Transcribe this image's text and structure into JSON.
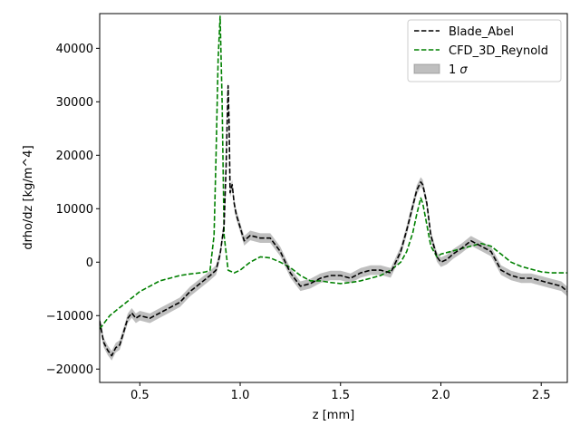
{
  "chart_data": {
    "type": "line",
    "title": "",
    "xlabel": "z [mm]",
    "ylabel": "drho/dz [kg/m^4]",
    "xlim": [
      0.3,
      2.63
    ],
    "ylim": [
      -22500,
      46500
    ],
    "xticks": [
      0.5,
      1.0,
      1.5,
      2.0,
      2.5
    ],
    "xtick_labels": [
      "0.5",
      "1.0",
      "1.5",
      "2.0",
      "2.5"
    ],
    "yticks": [
      -20000,
      -10000,
      0,
      10000,
      20000,
      30000,
      40000
    ],
    "ytick_labels": [
      "−20000",
      "−10000",
      "0",
      "10000",
      "20000",
      "30000",
      "40000"
    ],
    "grid": false,
    "legend_position": "top-right",
    "legend": {
      "blade": "Blade_Abel",
      "cfd": "CFD_3D_Reynold",
      "band_prefix": "1 ",
      "band_symbol": "σ"
    },
    "series": [
      {
        "name": "Blade_Abel",
        "color": "#000000",
        "style": "dashed",
        "x": [
          0.3,
          0.32,
          0.34,
          0.36,
          0.38,
          0.4,
          0.42,
          0.44,
          0.46,
          0.48,
          0.5,
          0.55,
          0.6,
          0.65,
          0.7,
          0.75,
          0.8,
          0.85,
          0.88,
          0.9,
          0.92,
          0.93,
          0.94,
          0.945,
          0.95,
          0.96,
          0.97,
          0.98,
          1.0,
          1.02,
          1.05,
          1.1,
          1.15,
          1.2,
          1.25,
          1.3,
          1.35,
          1.4,
          1.45,
          1.5,
          1.55,
          1.6,
          1.65,
          1.7,
          1.75,
          1.8,
          1.83,
          1.86,
          1.88,
          1.9,
          1.91,
          1.93,
          1.95,
          1.98,
          2.0,
          2.03,
          2.06,
          2.1,
          2.15,
          2.2,
          2.25,
          2.3,
          2.35,
          2.4,
          2.45,
          2.5,
          2.55,
          2.6,
          2.63
        ],
        "y": [
          -11000,
          -15000,
          -16500,
          -17500,
          -16000,
          -15500,
          -13000,
          -10500,
          -9500,
          -10500,
          -10000,
          -10500,
          -9500,
          -8500,
          -7500,
          -5500,
          -4000,
          -2500,
          -1500,
          1500,
          7000,
          18000,
          33000,
          26000,
          13000,
          14500,
          11000,
          9000,
          6500,
          4000,
          5000,
          4500,
          4500,
          2000,
          -2000,
          -4500,
          -4000,
          -3000,
          -2500,
          -2500,
          -3000,
          -2000,
          -1500,
          -1500,
          -2000,
          2000,
          6000,
          10500,
          13500,
          15000,
          14500,
          11000,
          5000,
          1000,
          0,
          500,
          1500,
          2500,
          4000,
          3000,
          2000,
          -1500,
          -2500,
          -3000,
          -3000,
          -3500,
          -4000,
          -4500,
          -5500
        ]
      },
      {
        "name": "CFD_3D_Reynold",
        "color": "#008000",
        "style": "dashed",
        "x": [
          0.3,
          0.35,
          0.4,
          0.45,
          0.5,
          0.55,
          0.6,
          0.65,
          0.7,
          0.75,
          0.8,
          0.83,
          0.85,
          0.87,
          0.88,
          0.89,
          0.9,
          0.91,
          0.92,
          0.94,
          0.97,
          1.0,
          1.05,
          1.1,
          1.15,
          1.2,
          1.25,
          1.3,
          1.35,
          1.4,
          1.45,
          1.5,
          1.55,
          1.6,
          1.65,
          1.7,
          1.75,
          1.8,
          1.83,
          1.86,
          1.88,
          1.9,
          1.91,
          1.93,
          1.95,
          1.98,
          2.0,
          2.05,
          2.1,
          2.15,
          2.2,
          2.25,
          2.3,
          2.35,
          2.4,
          2.45,
          2.5,
          2.55,
          2.6,
          2.63
        ],
        "y": [
          -12500,
          -10000,
          -8500,
          -7000,
          -5500,
          -4500,
          -3500,
          -3000,
          -2500,
          -2200,
          -2000,
          -1800,
          -1500,
          5000,
          20000,
          38000,
          46000,
          30000,
          5000,
          -1500,
          -2000,
          -1500,
          0,
          1000,
          800,
          0,
          -1000,
          -2500,
          -3500,
          -3500,
          -3800,
          -4000,
          -3800,
          -3500,
          -3000,
          -2500,
          -1500,
          0,
          2000,
          5500,
          9000,
          12000,
          11000,
          7000,
          3000,
          1000,
          1500,
          2000,
          2500,
          3000,
          3500,
          3000,
          1500,
          0,
          -800,
          -1300,
          -1800,
          -2000,
          -2000,
          -2000
        ]
      }
    ],
    "band": {
      "name": "1 σ",
      "color": "#808080",
      "alpha": 0.5,
      "half_width": 900
    }
  }
}
